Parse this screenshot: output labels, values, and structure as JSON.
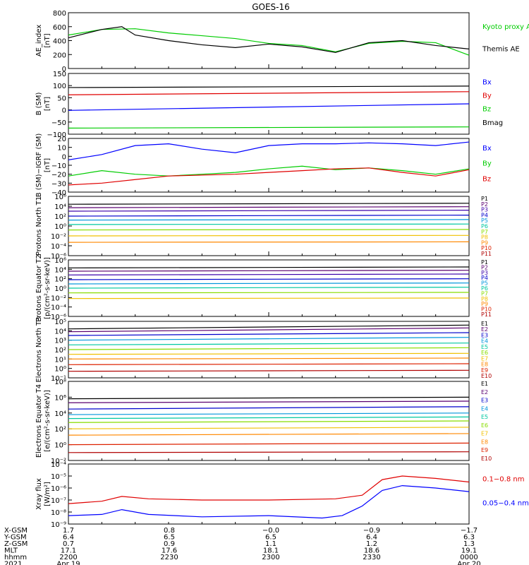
{
  "title": "GOES-16",
  "colors": {
    "black": "#000000",
    "blue": "#0000ff",
    "green": "#00cc00",
    "red": "#e00000",
    "bx": "#0000cc",
    "by": "#00aa00",
    "bz": "#cc0000",
    "bmag": "#000000"
  },
  "chart_data": [
    {
      "type": "line",
      "ylabel": "AE_index [nT]",
      "ylim": [
        0,
        800
      ],
      "yticks": [
        "800",
        "600",
        "400",
        "200",
        "0"
      ],
      "legend": [
        "Kyoto proxy AE",
        "Themis AE"
      ],
      "series": [
        {
          "name": "Kyoto proxy AE",
          "color": "#00cc00",
          "x": [
            0,
            5,
            10,
            15,
            20,
            25,
            30,
            35,
            40,
            45,
            50,
            55,
            60
          ],
          "values": [
            480,
            560,
            570,
            510,
            470,
            430,
            360,
            330,
            240,
            360,
            390,
            370,
            190
          ]
        },
        {
          "name": "Themis AE",
          "color": "#000000",
          "x": [
            0,
            5,
            8,
            10,
            15,
            20,
            25,
            30,
            35,
            40,
            45,
            50,
            55,
            60
          ],
          "values": [
            440,
            560,
            600,
            480,
            400,
            340,
            300,
            350,
            310,
            230,
            370,
            400,
            330,
            280
          ]
        }
      ]
    },
    {
      "type": "line",
      "ylabel": "B (SM) [nT]",
      "ylim": [
        -100,
        150
      ],
      "yticks": [
        "150",
        "100",
        "50",
        "0",
        "−50",
        "−100"
      ],
      "legend": [
        "Bx",
        "By",
        "Bz",
        "Bmag"
      ],
      "series": [
        {
          "name": "Bmag",
          "color": "#000000",
          "x": [
            0,
            60
          ],
          "values": [
            92,
            98
          ]
        },
        {
          "name": "By",
          "color": "#e00000",
          "x": [
            0,
            60
          ],
          "values": [
            62,
            75
          ]
        },
        {
          "name": "Bx",
          "color": "#0000ff",
          "x": [
            0,
            60
          ],
          "values": [
            -2,
            25
          ]
        },
        {
          "name": "Bz",
          "color": "#00cc00",
          "x": [
            0,
            60
          ],
          "values": [
            -75,
            -70
          ]
        }
      ]
    },
    {
      "type": "line",
      "ylabel": "B (SM)−IGRF (SM) [nT]",
      "ylim": [
        -40,
        20
      ],
      "yticks": [
        "20",
        "10",
        "0",
        "−10",
        "−20",
        "−30",
        "−40"
      ],
      "legend": [
        "Bx",
        "By",
        "Bz"
      ],
      "series": [
        {
          "name": "Bx",
          "color": "#0000ff",
          "x": [
            0,
            5,
            10,
            15,
            20,
            25,
            30,
            35,
            40,
            45,
            50,
            55,
            60
          ],
          "values": [
            -4,
            2,
            12,
            14,
            8,
            4,
            12,
            14,
            14,
            15,
            14,
            12,
            16
          ]
        },
        {
          "name": "By",
          "color": "#00cc00",
          "x": [
            0,
            5,
            10,
            15,
            20,
            25,
            30,
            35,
            40,
            45,
            50,
            55,
            60
          ],
          "values": [
            -22,
            -16,
            -20,
            -22,
            -20,
            -18,
            -14,
            -11,
            -15,
            -13,
            -16,
            -20,
            -14
          ]
        },
        {
          "name": "Bz",
          "color": "#e00000",
          "x": [
            0,
            5,
            10,
            15,
            20,
            25,
            30,
            35,
            40,
            45,
            50,
            55,
            60
          ],
          "values": [
            -32,
            -30,
            -26,
            -22,
            -21,
            -20,
            -18,
            -16,
            -14,
            -13,
            -18,
            -22,
            -15
          ]
        }
      ]
    },
    {
      "type": "line",
      "ylabel": "Protons North T1",
      "log": true,
      "ylim": [
        -6,
        6
      ],
      "yticks": [
        "10⁶",
        "10⁴",
        "10²",
        "10⁰",
        "10⁻²",
        "10⁻⁴",
        "10⁻⁶"
      ],
      "legend": [
        "P1",
        "P2",
        "P3",
        "P4",
        "P5",
        "P6",
        "P7",
        "P8",
        "P9",
        "P10",
        "P11"
      ],
      "series": [
        {
          "name": "P1",
          "color": "#000000",
          "x": [
            0,
            60
          ],
          "values": [
            4.4,
            4.6
          ]
        },
        {
          "name": "P2",
          "color": "#5a0070",
          "x": [
            0,
            60
          ],
          "values": [
            3.7,
            3.9
          ]
        },
        {
          "name": "P3",
          "color": "#3a00aa",
          "x": [
            0,
            60
          ],
          "values": [
            3.0,
            3.2
          ]
        },
        {
          "name": "P4",
          "color": "#0000cc",
          "x": [
            0,
            60
          ],
          "values": [
            2.0,
            2.2
          ]
        },
        {
          "name": "P5",
          "color": "#0096dc",
          "x": [
            0,
            60
          ],
          "values": [
            1.2,
            1.3
          ]
        },
        {
          "name": "P6",
          "color": "#00c8a0",
          "x": [
            0,
            60
          ],
          "values": [
            0.3,
            0.4
          ]
        },
        {
          "name": "P7",
          "color": "#88dd00",
          "x": [
            0,
            60
          ],
          "values": [
            -0.8,
            -0.7
          ]
        },
        {
          "name": "P8",
          "color": "#f0c000",
          "x": [
            0,
            60
          ],
          "values": [
            -2.0,
            -1.9
          ]
        },
        {
          "name": "P9",
          "color": "#ff8800",
          "x": [
            0,
            60
          ],
          "values": [
            -3.3,
            -3.2
          ]
        }
      ]
    },
    {
      "type": "line",
      "ylabel": "Protons Equator T2 [p/(cm²-s-sr-keV)]",
      "log": true,
      "ylim": [
        -6,
        6
      ],
      "yticks": [
        "10⁶",
        "10⁴",
        "10²",
        "10⁰",
        "10⁻²",
        "10⁻⁴",
        "10⁻⁶"
      ],
      "legend": [
        "P1",
        "P2",
        "P3",
        "P4",
        "P5",
        "P6",
        "P7",
        "P8",
        "P9",
        "P10",
        "P11"
      ],
      "series": [
        {
          "name": "P1",
          "color": "#000000",
          "x": [
            0,
            60
          ],
          "values": [
            4.3,
            4.5
          ]
        },
        {
          "name": "P2",
          "color": "#5a0070",
          "x": [
            0,
            60
          ],
          "values": [
            3.6,
            3.8
          ]
        },
        {
          "name": "P3",
          "color": "#3a00aa",
          "x": [
            0,
            60
          ],
          "values": [
            2.8,
            3.0
          ]
        },
        {
          "name": "P4",
          "color": "#0000cc",
          "x": [
            0,
            60
          ],
          "values": [
            1.8,
            2.0
          ]
        },
        {
          "name": "P5",
          "color": "#0096dc",
          "x": [
            0,
            60
          ],
          "values": [
            0.9,
            1.1
          ]
        },
        {
          "name": "P6",
          "color": "#00c8a0",
          "x": [
            0,
            60
          ],
          "values": [
            0.0,
            0.2
          ]
        },
        {
          "name": "P7",
          "color": "#88dd00",
          "x": [
            0,
            60
          ],
          "values": [
            -1.0,
            -0.9
          ]
        },
        {
          "name": "P8",
          "color": "#f0c000",
          "x": [
            0,
            60
          ],
          "values": [
            -2.2,
            -2.1
          ]
        }
      ]
    },
    {
      "type": "line",
      "ylabel": "Electrons North T3",
      "log": true,
      "ylim": [
        -1,
        5
      ],
      "yticks": [
        "10⁵",
        "10⁴",
        "10³",
        "10²",
        "10¹",
        "10⁰",
        "10⁻¹"
      ],
      "legend": [
        "E1",
        "E2",
        "E3",
        "E4",
        "E5",
        "E6",
        "E7",
        "E8",
        "E9",
        "E10"
      ],
      "series": [
        {
          "name": "E1",
          "color": "#000000",
          "x": [
            0,
            60
          ],
          "values": [
            4.2,
            4.6
          ]
        },
        {
          "name": "E2",
          "color": "#5a0070",
          "x": [
            0,
            60
          ],
          "values": [
            3.9,
            4.3
          ]
        },
        {
          "name": "E3",
          "color": "#0000cc",
          "x": [
            0,
            60
          ],
          "values": [
            3.5,
            3.8
          ]
        },
        {
          "name": "E4",
          "color": "#0096dc",
          "x": [
            0,
            60
          ],
          "values": [
            3.0,
            3.3
          ]
        },
        {
          "name": "E5",
          "color": "#00c8a0",
          "x": [
            0,
            60
          ],
          "values": [
            2.5,
            2.7
          ]
        },
        {
          "name": "E6",
          "color": "#88dd00",
          "x": [
            0,
            60
          ],
          "values": [
            2.0,
            2.2
          ]
        },
        {
          "name": "E7",
          "color": "#f0c000",
          "x": [
            0,
            60
          ],
          "values": [
            1.5,
            1.6
          ]
        },
        {
          "name": "E8",
          "color": "#ff8800",
          "x": [
            0,
            60
          ],
          "values": [
            1.0,
            1.1
          ]
        },
        {
          "name": "E9",
          "color": "#dd2200",
          "x": [
            0,
            60
          ],
          "values": [
            0.4,
            0.5
          ]
        },
        {
          "name": "E10",
          "color": "#b00000",
          "x": [
            0,
            60
          ],
          "values": [
            -0.3,
            -0.2
          ]
        }
      ]
    },
    {
      "type": "line",
      "ylabel": "Electrons Equator T4 [e/(cm²-s-sr-keV)]",
      "log": true,
      "ylim": [
        -2,
        8
      ],
      "yticks": [
        "10⁸",
        "10⁶",
        "10⁴",
        "10²",
        "10⁰",
        "10⁻²"
      ],
      "legend": [
        "E1",
        "E2",
        "E3",
        "E4",
        "E5",
        "E6",
        "E7",
        "E8",
        "E9",
        "E10"
      ],
      "series": [
        {
          "name": "E1",
          "color": "#000000",
          "x": [
            0,
            60
          ],
          "values": [
            5.8,
            6.0
          ]
        },
        {
          "name": "E2",
          "color": "#5a0070",
          "x": [
            0,
            60
          ],
          "values": [
            5.3,
            5.5
          ]
        },
        {
          "name": "E3",
          "color": "#0000cc",
          "x": [
            0,
            60
          ],
          "values": [
            4.5,
            4.8
          ]
        },
        {
          "name": "E4",
          "color": "#0096dc",
          "x": [
            0,
            60
          ],
          "values": [
            3.8,
            4.0
          ]
        },
        {
          "name": "E5",
          "color": "#00c8a0",
          "x": [
            0,
            60
          ],
          "values": [
            3.3,
            3.5
          ]
        },
        {
          "name": "E6",
          "color": "#88dd00",
          "x": [
            0,
            60
          ],
          "values": [
            2.8,
            3.0
          ]
        },
        {
          "name": "E7",
          "color": "#f0c000",
          "x": [
            0,
            60
          ],
          "values": [
            2.0,
            2.2
          ]
        },
        {
          "name": "E8",
          "color": "#ff8800",
          "x": [
            0,
            60
          ],
          "values": [
            1.2,
            1.4
          ]
        },
        {
          "name": "E9",
          "color": "#dd2200",
          "x": [
            0,
            60
          ],
          "values": [
            0.0,
            0.2
          ]
        },
        {
          "name": "E10",
          "color": "#b00000",
          "x": [
            0,
            60
          ],
          "values": [
            -1.0,
            -0.9
          ]
        }
      ]
    },
    {
      "type": "line",
      "ylabel": "Xray flux [W/m²]",
      "log": true,
      "ylim": [
        -9,
        -4
      ],
      "yticks": [
        "10⁻⁴",
        "10⁻⁵",
        "10⁻⁶",
        "10⁻⁷",
        "10⁻⁸",
        "10⁻⁹"
      ],
      "legend": [
        "0.1−0.8 nm",
        "0.05−0.4 nm"
      ],
      "series": [
        {
          "name": "0.1−0.8 nm",
          "color": "#e00000",
          "x": [
            0,
            5,
            8,
            12,
            20,
            30,
            40,
            44,
            47,
            50,
            55,
            60
          ],
          "values": [
            -7.3,
            -7.1,
            -6.7,
            -6.9,
            -7.0,
            -7.0,
            -6.9,
            -6.6,
            -5.3,
            -5.0,
            -5.2,
            -5.5
          ]
        },
        {
          "name": "0.05−0.4 nm",
          "color": "#0000ff",
          "x": [
            0,
            5,
            8,
            12,
            20,
            30,
            38,
            41,
            44,
            47,
            50,
            55,
            60
          ],
          "values": [
            -8.3,
            -8.2,
            -7.8,
            -8.2,
            -8.4,
            -8.3,
            -8.5,
            -8.3,
            -7.5,
            -6.2,
            -5.8,
            -6.0,
            -6.3
          ]
        }
      ]
    }
  ],
  "xaxis": {
    "rows": [
      {
        "label": "X-GSM",
        "values": [
          "1.7",
          "0.8",
          "−0.0",
          "−0.9",
          "−1.7"
        ]
      },
      {
        "label": "Y-GSM",
        "values": [
          "6.4",
          "6.5",
          "6.5",
          "6.4",
          "6.3"
        ]
      },
      {
        "label": "Z-GSM",
        "values": [
          "0.7",
          "0.9",
          "1.1",
          "1.2",
          "1.3"
        ]
      },
      {
        "label": "MLT",
        "values": [
          "17.1",
          "17.6",
          "18.1",
          "18.6",
          "19.1"
        ]
      },
      {
        "label": "hhmm",
        "values": [
          "2200",
          "2230",
          "2300",
          "2330",
          "0000"
        ]
      },
      {
        "label": "2021",
        "values": [
          "Apr 19",
          "",
          "",
          "",
          "Apr 20"
        ]
      }
    ]
  }
}
